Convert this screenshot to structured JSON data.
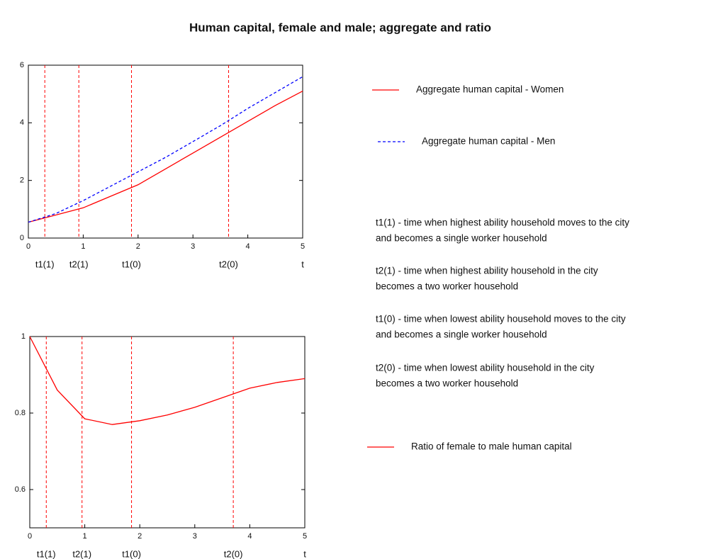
{
  "title": "Human capital, female and male; aggregate and ratio",
  "notes": [
    [
      "t1(1) - time when highest ability household moves to the city",
      "and becomes a single worker household"
    ],
    [
      "t2(1) - time when highest ability household in the city",
      "becomes a two worker household"
    ],
    [
      "t1(0) - time when lowest ability household moves to the city",
      "and becomes a single worker household"
    ],
    [
      "t2(0) - time when lowest ability household in the city",
      "becomes a two worker household"
    ]
  ],
  "chart_data": [
    {
      "type": "line",
      "xlabel": "t",
      "x": [
        0,
        0.5,
        1,
        1.5,
        2,
        2.5,
        3,
        3.5,
        4,
        4.5,
        5
      ],
      "series": [
        {
          "name": "Aggregate human capital - Women",
          "color": "#ff0000",
          "dash": false,
          "values": [
            0.55,
            0.8,
            1.05,
            1.45,
            1.85,
            2.4,
            2.95,
            3.5,
            4.05,
            4.6,
            5.1
          ]
        },
        {
          "name": "Aggregate human capital - Men",
          "color": "#0000ff",
          "dash": true,
          "values": [
            0.55,
            0.85,
            1.3,
            1.8,
            2.3,
            2.8,
            3.35,
            3.9,
            4.5,
            5.05,
            5.6
          ]
        }
      ],
      "vlines": [
        {
          "value": 0.3,
          "label": "t1(1)"
        },
        {
          "value": 0.92,
          "label": "t2(1)"
        },
        {
          "value": 1.88,
          "label": "t1(0)"
        },
        {
          "value": 3.65,
          "label": "t2(0)"
        }
      ],
      "xlim": [
        0,
        5
      ],
      "xticks": [
        0,
        1,
        2,
        3,
        4,
        5
      ],
      "ylim": [
        0,
        6
      ],
      "yticks": [
        0,
        2,
        4,
        6
      ]
    },
    {
      "type": "line",
      "xlabel": "t",
      "x": [
        0,
        0.5,
        1,
        1.5,
        2,
        2.5,
        3,
        3.5,
        4,
        4.5,
        5
      ],
      "series": [
        {
          "name": "Ratio of female to male human capital",
          "color": "#ff0000",
          "dash": false,
          "values": [
            1,
            0.86,
            0.785,
            0.77,
            0.78,
            0.795,
            0.815,
            0.84,
            0.865,
            0.88,
            0.89
          ]
        }
      ],
      "vlines": [
        {
          "value": 0.3,
          "label": "t1(1)"
        },
        {
          "value": 0.95,
          "label": "t2(1)"
        },
        {
          "value": 1.85,
          "label": "t1(0)"
        },
        {
          "value": 3.7,
          "label": "t2(0)"
        }
      ],
      "xlim": [
        0,
        5
      ],
      "xticks": [
        0,
        1,
        2,
        3,
        4,
        5
      ],
      "ylim": [
        0.5,
        1
      ],
      "yticks": [
        0.6,
        0.8,
        1
      ]
    }
  ]
}
